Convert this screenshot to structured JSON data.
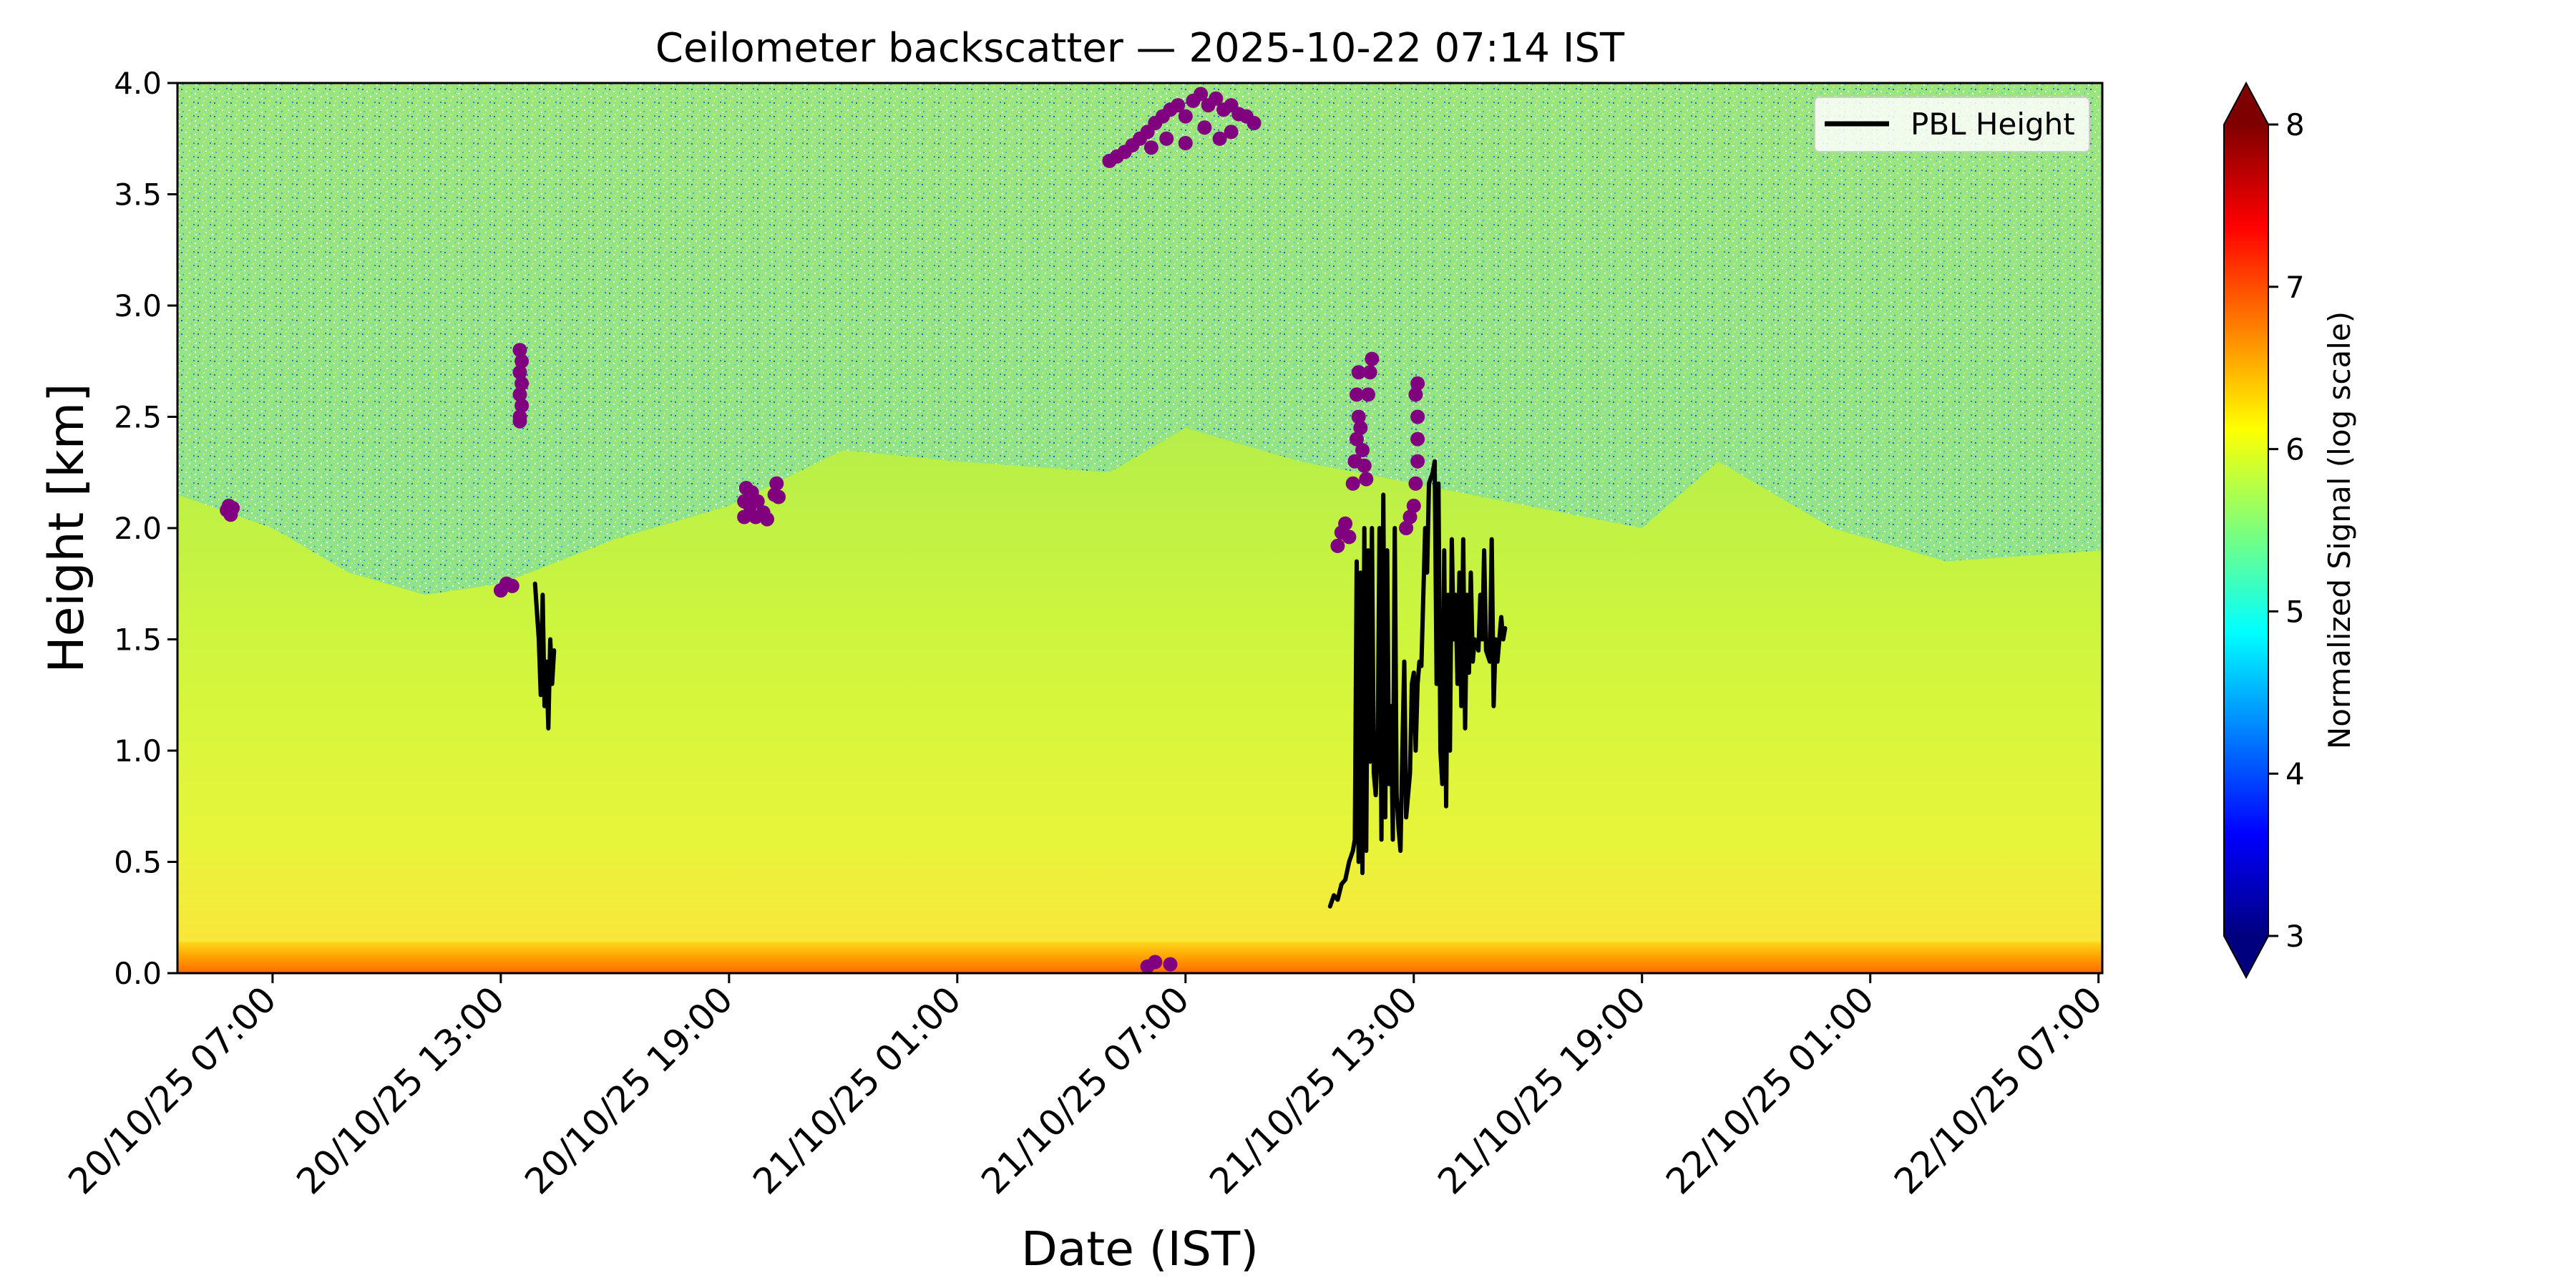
{
  "chart_data": {
    "type": "heatmap",
    "title": "Ceilometer backscatter — 2025-10-22 07:14 IST",
    "xlabel": "Date (IST)",
    "ylabel": "Height [km]",
    "x_tick_labels": [
      "20/10/25 07:00",
      "20/10/25 13:00",
      "20/10/25 19:00",
      "21/10/25 01:00",
      "21/10/25 07:00",
      "21/10/25 13:00",
      "21/10/25 19:00",
      "22/10/25 01:00",
      "22/10/25 07:00"
    ],
    "x_tick_hours": [
      0,
      6,
      12,
      18,
      24,
      30,
      36,
      42,
      48
    ],
    "xlim_hours": [
      -2.5,
      48.1
    ],
    "y_ticks": [
      0.0,
      0.5,
      1.0,
      1.5,
      2.0,
      2.5,
      3.0,
      3.5,
      4.0
    ],
    "y_tick_labels": [
      "0.0",
      "0.5",
      "1.0",
      "1.5",
      "2.0",
      "2.5",
      "3.0",
      "3.5",
      "4.0"
    ],
    "ylim": [
      0,
      4
    ],
    "grid": false,
    "legend": {
      "placement": "top-right",
      "entries": [
        {
          "label": "PBL Height",
          "color": "#000000"
        }
      ]
    },
    "colorbar": {
      "label": "Normalized Signal (log scale)",
      "ticks": [
        3,
        4,
        5,
        6,
        7,
        8
      ],
      "tick_labels": [
        "3",
        "4",
        "5",
        "6",
        "7",
        "8"
      ],
      "range": [
        3,
        8
      ],
      "extend": "both",
      "colormap": "jet"
    },
    "background_field": {
      "description_of_levels": "near-surface layer ~0–0.15 km signal 6.5–7.5; boundary layer below ~2 km signal ~6; above ~2 km noisy signal 5–6",
      "boundary_layer_top_km": [
        {
          "hour": -2.5,
          "top": 2.15
        },
        {
          "hour": 0,
          "top": 2.0
        },
        {
          "hour": 2,
          "top": 1.8
        },
        {
          "hour": 4,
          "top": 1.7
        },
        {
          "hour": 6,
          "top": 1.75
        },
        {
          "hour": 9,
          "top": 1.95
        },
        {
          "hour": 12,
          "top": 2.1
        },
        {
          "hour": 15,
          "top": 2.35
        },
        {
          "hour": 18,
          "top": 2.3
        },
        {
          "hour": 22,
          "top": 2.25
        },
        {
          "hour": 24,
          "top": 2.45
        },
        {
          "hour": 27,
          "top": 2.3
        },
        {
          "hour": 30,
          "top": 2.2
        },
        {
          "hour": 33,
          "top": 2.1
        },
        {
          "hour": 36,
          "top": 2.0
        },
        {
          "hour": 38,
          "top": 2.3
        },
        {
          "hour": 41,
          "top": 2.0
        },
        {
          "hour": 44,
          "top": 1.85
        },
        {
          "hour": 48.1,
          "top": 1.9
        }
      ]
    },
    "series": [
      {
        "name": "PBL Height",
        "type": "line",
        "color": "#000000",
        "segments": [
          [
            [
              6.9,
              1.75
            ],
            [
              7.0,
              1.5
            ],
            [
              7.05,
              1.25
            ],
            [
              7.1,
              1.7
            ],
            [
              7.15,
              1.2
            ],
            [
              7.2,
              1.4
            ],
            [
              7.25,
              1.1
            ],
            [
              7.3,
              1.5
            ],
            [
              7.35,
              1.3
            ],
            [
              7.4,
              1.45
            ]
          ],
          [
            [
              27.8,
              0.3
            ],
            [
              27.9,
              0.35
            ],
            [
              28.0,
              0.33
            ],
            [
              28.1,
              0.4
            ],
            [
              28.2,
              0.42
            ],
            [
              28.3,
              0.5
            ],
            [
              28.4,
              0.55
            ],
            [
              28.45,
              0.6
            ],
            [
              28.5,
              1.85
            ],
            [
              28.55,
              0.5
            ],
            [
              28.6,
              1.8
            ],
            [
              28.65,
              0.45
            ],
            [
              28.7,
              2.0
            ],
            [
              28.75,
              0.55
            ],
            [
              28.8,
              1.9
            ],
            [
              28.85,
              0.95
            ],
            [
              28.9,
              2.0
            ],
            [
              28.95,
              0.9
            ],
            [
              29.0,
              0.8
            ],
            [
              29.05,
              1.0
            ],
            [
              29.1,
              2.0
            ],
            [
              29.15,
              0.6
            ],
            [
              29.2,
              2.15
            ],
            [
              29.25,
              0.7
            ],
            [
              29.3,
              1.9
            ],
            [
              29.35,
              0.85
            ],
            [
              29.4,
              1.2
            ],
            [
              29.45,
              0.6
            ],
            [
              29.5,
              2.0
            ],
            [
              29.55,
              0.8
            ],
            [
              29.6,
              0.65
            ],
            [
              29.65,
              0.55
            ],
            [
              29.7,
              1.0
            ],
            [
              29.75,
              1.4
            ],
            [
              29.8,
              0.7
            ],
            [
              29.9,
              0.9
            ],
            [
              29.95,
              1.3
            ],
            [
              30.0,
              1.35
            ],
            [
              30.05,
              1.0
            ],
            [
              30.1,
              1.3
            ],
            [
              30.15,
              1.4
            ],
            [
              30.2,
              1.38
            ],
            [
              30.3,
              2.0
            ],
            [
              30.35,
              1.8
            ],
            [
              30.4,
              2.2
            ],
            [
              30.5,
              2.25
            ],
            [
              30.55,
              2.3
            ],
            [
              30.6,
              1.3
            ],
            [
              30.65,
              2.2
            ],
            [
              30.7,
              1.0
            ],
            [
              30.75,
              0.85
            ],
            [
              30.8,
              1.9
            ],
            [
              30.85,
              0.75
            ],
            [
              30.9,
              1.7
            ],
            [
              30.95,
              1.0
            ],
            [
              31.0,
              1.95
            ],
            [
              31.05,
              1.5
            ],
            [
              31.1,
              1.7
            ],
            [
              31.15,
              1.3
            ],
            [
              31.2,
              1.8
            ],
            [
              31.25,
              1.2
            ],
            [
              31.3,
              1.95
            ],
            [
              31.35,
              1.1
            ],
            [
              31.4,
              1.7
            ],
            [
              31.45,
              1.35
            ],
            [
              31.5,
              1.8
            ],
            [
              31.55,
              1.4
            ],
            [
              31.6,
              1.5
            ],
            [
              31.7,
              1.45
            ],
            [
              31.75,
              1.7
            ],
            [
              31.8,
              1.5
            ],
            [
              31.85,
              1.9
            ],
            [
              31.9,
              1.45
            ],
            [
              32.0,
              1.4
            ],
            [
              32.05,
              1.95
            ],
            [
              32.1,
              1.2
            ],
            [
              32.15,
              1.5
            ],
            [
              32.2,
              1.4
            ],
            [
              32.3,
              1.6
            ],
            [
              32.35,
              1.5
            ],
            [
              32.4,
              1.55
            ]
          ]
        ]
      },
      {
        "name": "cloud markers",
        "type": "scatter",
        "color": "#800080",
        "points": [
          [
            -1.2,
            2.08
          ],
          [
            -1.15,
            2.1
          ],
          [
            -1.1,
            2.06
          ],
          [
            -1.05,
            2.09
          ],
          [
            6.0,
            1.72
          ],
          [
            6.15,
            1.75
          ],
          [
            6.3,
            1.74
          ],
          [
            6.5,
            2.5
          ],
          [
            6.5,
            2.6
          ],
          [
            6.5,
            2.7
          ],
          [
            6.5,
            2.8
          ],
          [
            6.55,
            2.55
          ],
          [
            6.55,
            2.65
          ],
          [
            6.55,
            2.75
          ],
          [
            6.5,
            2.48
          ],
          [
            12.4,
            2.05
          ],
          [
            12.4,
            2.12
          ],
          [
            12.45,
            2.18
          ],
          [
            12.55,
            2.1
          ],
          [
            12.6,
            2.16
          ],
          [
            12.7,
            2.05
          ],
          [
            12.75,
            2.12
          ],
          [
            12.9,
            2.07
          ],
          [
            13.0,
            2.04
          ],
          [
            13.2,
            2.15
          ],
          [
            13.25,
            2.2
          ],
          [
            13.3,
            2.14
          ],
          [
            22.0,
            3.65
          ],
          [
            22.2,
            3.67
          ],
          [
            22.4,
            3.69
          ],
          [
            22.6,
            3.72
          ],
          [
            22.8,
            3.75
          ],
          [
            23.0,
            3.78
          ],
          [
            23.1,
            3.71
          ],
          [
            23.2,
            3.82
          ],
          [
            23.4,
            3.85
          ],
          [
            23.5,
            3.75
          ],
          [
            23.6,
            3.88
          ],
          [
            23.8,
            3.9
          ],
          [
            24.0,
            3.85
          ],
          [
            24.2,
            3.92
          ],
          [
            24.4,
            3.95
          ],
          [
            24.5,
            3.8
          ],
          [
            24.6,
            3.9
          ],
          [
            24.8,
            3.93
          ],
          [
            25.0,
            3.88
          ],
          [
            25.2,
            3.9
          ],
          [
            25.4,
            3.86
          ],
          [
            25.6,
            3.85
          ],
          [
            25.8,
            3.82
          ],
          [
            25.2,
            3.78
          ],
          [
            24.9,
            3.75
          ],
          [
            24.0,
            3.73
          ],
          [
            23.0,
            0.03
          ],
          [
            23.2,
            0.05
          ],
          [
            23.6,
            0.04
          ],
          [
            28.0,
            1.92
          ],
          [
            28.1,
            1.98
          ],
          [
            28.2,
            2.02
          ],
          [
            28.3,
            1.96
          ],
          [
            28.4,
            2.2
          ],
          [
            28.45,
            2.3
          ],
          [
            28.5,
            2.4
          ],
          [
            28.55,
            2.5
          ],
          [
            28.5,
            2.6
          ],
          [
            28.55,
            2.7
          ],
          [
            28.6,
            2.45
          ],
          [
            28.65,
            2.35
          ],
          [
            28.7,
            2.28
          ],
          [
            28.75,
            2.22
          ],
          [
            28.8,
            2.6
          ],
          [
            28.85,
            2.7
          ],
          [
            28.9,
            2.76
          ],
          [
            29.8,
            2.0
          ],
          [
            29.9,
            2.05
          ],
          [
            30.0,
            2.1
          ],
          [
            30.05,
            2.2
          ],
          [
            30.1,
            2.3
          ],
          [
            30.1,
            2.4
          ],
          [
            30.1,
            2.5
          ],
          [
            30.05,
            2.6
          ],
          [
            30.1,
            2.65
          ]
        ]
      }
    ]
  }
}
